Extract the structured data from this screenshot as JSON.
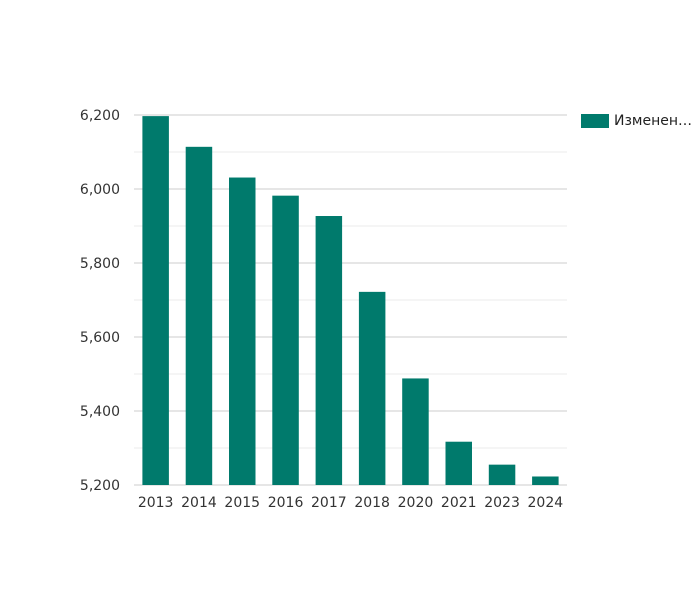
{
  "colors": {
    "bar": "#007A6C",
    "grid_major": "#cccccc",
    "grid_minor": "#ebebeb",
    "axis_text": "#333333"
  },
  "legend": {
    "label": "Изменен…",
    "position": "top-right"
  },
  "chart_data": {
    "type": "bar",
    "categories": [
      "2013",
      "2014",
      "2015",
      "2016",
      "2017",
      "2018",
      "2020",
      "2021",
      "2023",
      "2024"
    ],
    "series": [
      {
        "name": "Изменен…",
        "values": [
          6197,
          6114,
          6031,
          5982,
          5927,
          5722,
          5488,
          5317,
          5255,
          5223
        ]
      }
    ],
    "ylim": [
      5200,
      6200
    ],
    "yticks": [
      "5,200",
      "5,400",
      "5,600",
      "5,800",
      "6,000",
      "6,200"
    ],
    "grid": true,
    "title": "",
    "xlabel": "",
    "ylabel": ""
  }
}
